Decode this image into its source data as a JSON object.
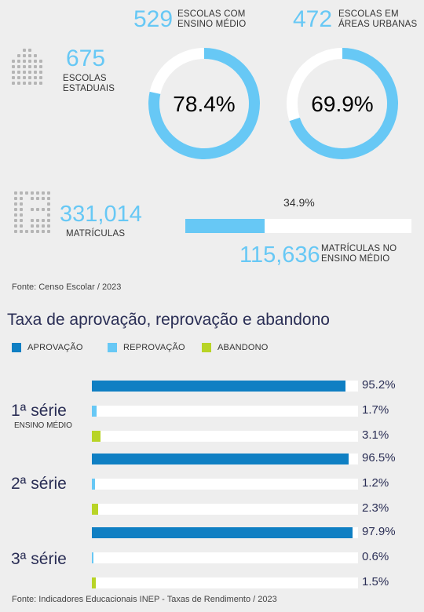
{
  "header_stats": {
    "schools_high_school": {
      "value": "529",
      "label_line1": "ESCOLAS COM",
      "label_line2": "ENSINO MÉDIO"
    },
    "schools_urban": {
      "value": "472",
      "label_line1": "ESCOLAS EM",
      "label_line2": "ÁREAS URBANAS"
    },
    "state_schools": {
      "value": "675",
      "label_line1": "ESCOLAS",
      "label_line2": "ESTADUAIS"
    },
    "enrollments": {
      "value": "331,014",
      "label": "MATRÍCULAS"
    },
    "hs_enrollments": {
      "value": "115,636",
      "label_line1": "MATRÍCULAS NO",
      "label_line2": "ENSINO MÉDIO"
    }
  },
  "donuts": [
    {
      "label": "78.4%",
      "percent": 78.4
    },
    {
      "label": "69.9%",
      "percent": 69.9
    }
  ],
  "enrollment_bar": {
    "label": "34.9%",
    "percent": 34.9
  },
  "colors": {
    "light_blue": "#67c8f5",
    "dark_blue": "#0f7fc3",
    "green": "#b8d426",
    "navy_text": "#2a2e55",
    "track": "#ffffff"
  },
  "source_top": "Fonte: Censo Escolar / 2023",
  "chart_data": {
    "type": "bar",
    "title": "Taxa de aprovação, reprovação e abandono",
    "categories": [
      "1ª série",
      "2ª série",
      "3ª série"
    ],
    "category_sub": [
      "ENSINO MÉDIO",
      "",
      ""
    ],
    "series": [
      {
        "name": "APROVAÇÃO",
        "color": "#0f7fc3",
        "values": [
          95.2,
          96.5,
          97.9
        ],
        "labels": [
          "95.2%",
          "96.5%",
          "97.9%"
        ]
      },
      {
        "name": "REPROVAÇÃO",
        "color": "#67c8f5",
        "values": [
          1.7,
          1.2,
          0.6
        ],
        "labels": [
          "1.7%",
          "1.2%",
          "0.6%"
        ]
      },
      {
        "name": "ABANDONO",
        "color": "#b8d426",
        "values": [
          3.1,
          2.3,
          1.5
        ],
        "labels": [
          "3.1%",
          "2.3%",
          "1.5%"
        ]
      }
    ],
    "xlim": [
      0,
      100
    ],
    "orientation": "horizontal"
  },
  "source_bottom": "Fonte: Indicadores Educacionais INEP - Taxas de Rendimento / 2023"
}
